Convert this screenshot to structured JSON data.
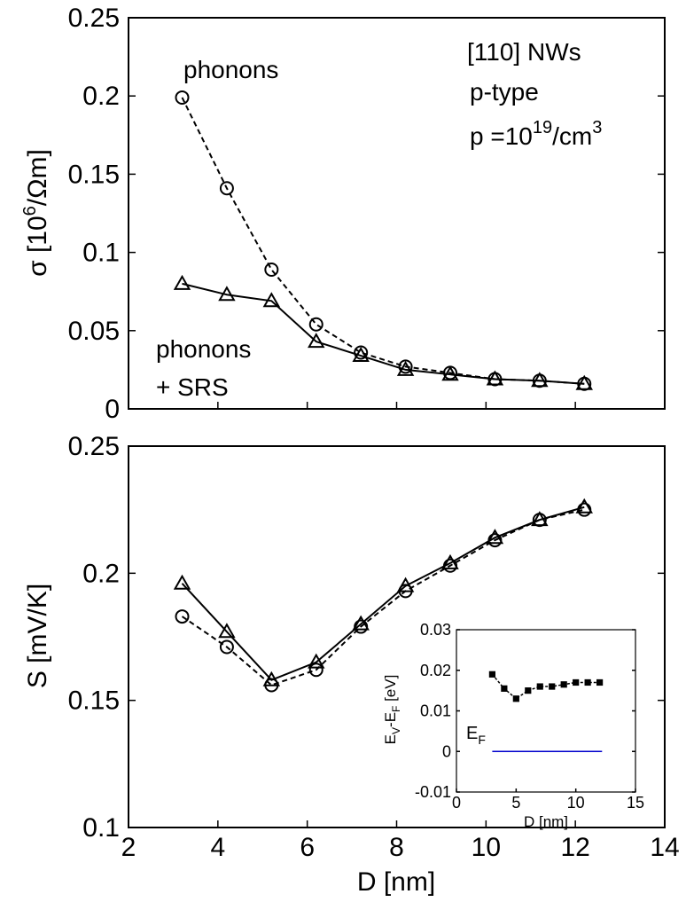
{
  "chart_data": [
    {
      "type": "line",
      "xlabel": "",
      "ylabel_parts": {
        "a": "σ [10",
        "b": "6",
        "c": "/Ωm]"
      },
      "xlim": [
        2,
        14
      ],
      "ylim": [
        0,
        0.25
      ],
      "xticks": [],
      "yticks": [
        "0",
        "0.05",
        "0.1",
        "0.15",
        "0.2",
        "0.25"
      ],
      "annotations": {
        "phonons": "phonons",
        "phonons_srs_line1": "phonons",
        "phonons_srs_line2": "+ SRS",
        "nws": "[110] NWs",
        "ptype": "p-type",
        "density": {
          "a": "p  =10",
          "b": "19",
          "c": "/cm",
          "d": "3"
        }
      },
      "series": [
        {
          "key": "phonons",
          "marker": "circle",
          "line": "dashed",
          "x": [
            3.2,
            4.2,
            5.2,
            6.2,
            7.2,
            8.2,
            9.2,
            10.2,
            11.2,
            12.2
          ],
          "y": [
            0.199,
            0.141,
            0.089,
            0.054,
            0.036,
            0.027,
            0.023,
            0.019,
            0.018,
            0.016
          ]
        },
        {
          "key": "phonons_srs",
          "marker": "triangle",
          "line": "solid",
          "x": [
            3.2,
            4.2,
            5.2,
            6.2,
            7.2,
            8.2,
            9.2,
            10.2,
            11.2,
            12.2
          ],
          "y": [
            0.08,
            0.073,
            0.069,
            0.043,
            0.034,
            0.025,
            0.022,
            0.019,
            0.018,
            0.016
          ]
        }
      ]
    },
    {
      "type": "line",
      "xlabel": "D [nm]",
      "ylabel": "S [mV/K]",
      "xlim": [
        2,
        14
      ],
      "ylim": [
        0.1,
        0.25
      ],
      "xticks": [
        "2",
        "4",
        "6",
        "8",
        "10",
        "12",
        "14"
      ],
      "yticks": [
        "0.1",
        "0.15",
        "0.2",
        "0.25"
      ],
      "series": [
        {
          "key": "phonons_srs",
          "marker": "triangle",
          "line": "solid",
          "x": [
            3.2,
            4.2,
            5.2,
            6.2,
            7.2,
            8.2,
            9.2,
            10.2,
            11.2,
            12.2
          ],
          "y": [
            0.196,
            0.177,
            0.158,
            0.165,
            0.18,
            0.195,
            0.204,
            0.214,
            0.221,
            0.226
          ]
        },
        {
          "key": "phonons",
          "marker": "circle",
          "line": "dashed",
          "x": [
            3.2,
            4.2,
            5.2,
            6.2,
            7.2,
            8.2,
            9.2,
            10.2,
            11.2,
            12.2
          ],
          "y": [
            0.183,
            0.171,
            0.156,
            0.162,
            0.179,
            0.193,
            0.203,
            0.213,
            0.221,
            0.225
          ]
        }
      ]
    },
    {
      "type": "line",
      "inset": true,
      "xlabel": "D [nm]",
      "ylabel_parts": {
        "a": "E",
        "b": "V",
        "c": "-E",
        "d": "F",
        "e": " [eV]"
      },
      "ef_label": {
        "a": "E",
        "b": "F"
      },
      "xlim": [
        0,
        15
      ],
      "ylim": [
        -0.01,
        0.03
      ],
      "xticks": [
        "0",
        "5",
        "10",
        "15"
      ],
      "yticks": [
        "-0.01",
        "0",
        "0.01",
        "0.02",
        "0.03"
      ],
      "series": [
        {
          "key": "ev_minus_ef",
          "marker": "square",
          "line": "dashed",
          "color": "#000000",
          "x": [
            3,
            4,
            5,
            6,
            7,
            8,
            9,
            10,
            11,
            12
          ],
          "y": [
            0.019,
            0.0155,
            0.013,
            0.015,
            0.016,
            0.016,
            0.0165,
            0.017,
            0.017,
            0.017
          ]
        },
        {
          "key": "ef",
          "marker": "none",
          "line": "solid",
          "color": "#0000cc",
          "x": [
            3,
            12.2
          ],
          "y": [
            0,
            0
          ]
        }
      ]
    }
  ]
}
